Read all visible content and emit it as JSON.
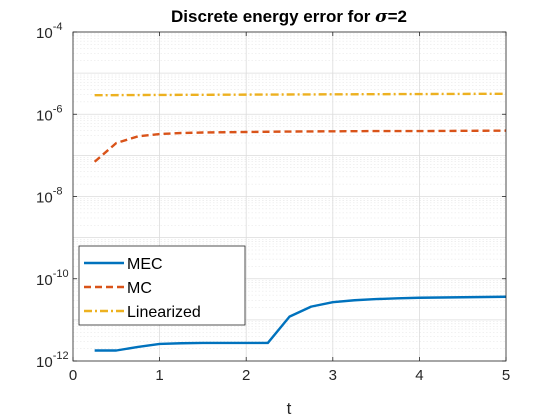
{
  "chart_data": {
    "type": "line",
    "title_prefix": "Discrete energy error for ",
    "title_symbol": "σ",
    "title_suffix": "=2",
    "xlabel": "t",
    "ylabel": "",
    "xlim": [
      0,
      5
    ],
    "ylim": [
      1e-12,
      0.0001
    ],
    "yscale": "log",
    "grid": true,
    "minor_grid": true,
    "legend_position": "lower-left",
    "x_ticks": [
      "0",
      "1",
      "2",
      "3",
      "4",
      "5"
    ],
    "y_ticks": [
      {
        "base": "10",
        "exp": "-12"
      },
      {
        "base": "10",
        "exp": "-10"
      },
      {
        "base": "10",
        "exp": "-8"
      },
      {
        "base": "10",
        "exp": "-6"
      },
      {
        "base": "10",
        "exp": "-4"
      }
    ],
    "series": [
      {
        "name": "MEC",
        "color": "#0072BD",
        "dash": "solid",
        "x": [
          0.25,
          0.5,
          0.75,
          1.0,
          1.25,
          1.5,
          1.75,
          2.0,
          2.25,
          2.5,
          2.75,
          3.0,
          3.25,
          3.5,
          3.75,
          4.0,
          4.25,
          4.5,
          4.75,
          5.0
        ],
        "y": [
          1.8e-12,
          1.8e-12,
          2.2e-12,
          2.6e-12,
          2.7e-12,
          2.75e-12,
          2.75e-12,
          2.75e-12,
          2.75e-12,
          1.2e-11,
          2.1e-11,
          2.7e-11,
          3e-11,
          3.2e-11,
          3.35e-11,
          3.45e-11,
          3.5e-11,
          3.55e-11,
          3.6e-11,
          3.65e-11
        ]
      },
      {
        "name": "MC",
        "color": "#D95319",
        "dash": "dashed",
        "x": [
          0.25,
          0.5,
          0.75,
          1.0,
          1.25,
          1.5,
          2.0,
          2.5,
          3.0,
          3.5,
          4.0,
          4.5,
          5.0
        ],
        "y": [
          7e-08,
          2e-07,
          2.9e-07,
          3.3e-07,
          3.5e-07,
          3.6e-07,
          3.7e-07,
          3.8e-07,
          3.85e-07,
          3.9e-07,
          3.9e-07,
          3.95e-07,
          4e-07
        ]
      },
      {
        "name": "Linearized",
        "color": "#EDB120",
        "dash": "dashdot",
        "x": [
          0.25,
          1.0,
          2.0,
          3.0,
          4.0,
          5.0
        ],
        "y": [
          2.9e-06,
          2.95e-06,
          3e-06,
          3.05e-06,
          3.1e-06,
          3.15e-06
        ]
      }
    ]
  }
}
